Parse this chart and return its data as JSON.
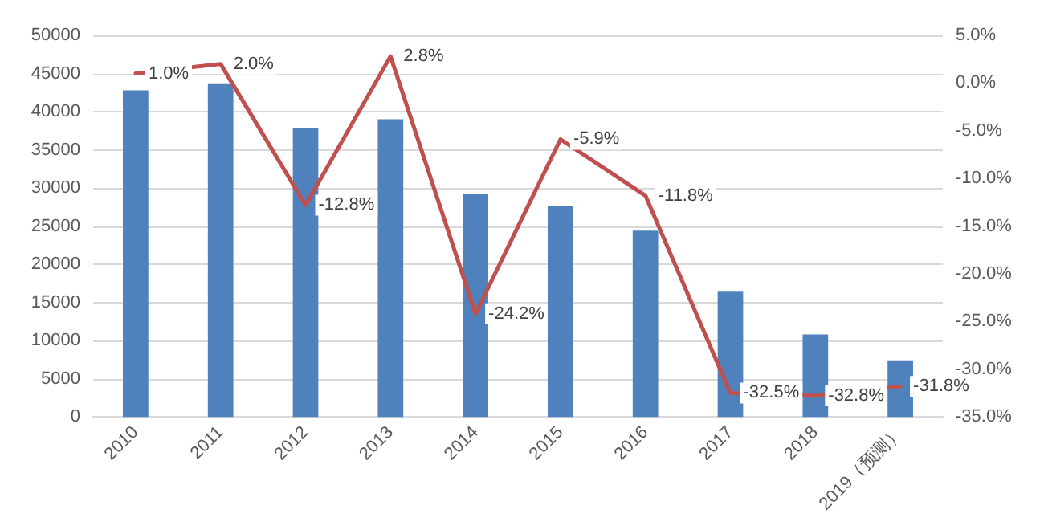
{
  "chart_data": {
    "type": "bar",
    "categories": [
      "2010",
      "2011",
      "2012",
      "2013",
      "2014",
      "2015",
      "2016",
      "2017",
      "2018",
      "2019（预测）"
    ],
    "series": [
      {
        "color": "#4f81bd",
        "values": [
          42800,
          43700,
          37900,
          39000,
          29200,
          27600,
          24400,
          16400,
          10800,
          7400
        ]
      },
      {
        "type": "line",
        "axis": "y2",
        "color": "#c0504d",
        "values": [
          1.0,
          2.0,
          -12.8,
          2.8,
          -24.2,
          -5.9,
          -11.8,
          -32.5,
          -32.8,
          -31.8
        ],
        "value_labels": [
          "1.0%",
          "2.0%",
          "-12.8%",
          "2.8%",
          "-24.2%",
          "-5.9%",
          "-11.8%",
          "-32.5%",
          "-32.8%",
          "-31.8%"
        ]
      }
    ],
    "ylim": [
      0,
      50000
    ],
    "yticks": [
      0,
      5000,
      10000,
      15000,
      20000,
      25000,
      30000,
      35000,
      40000,
      45000,
      50000
    ],
    "y2lim": [
      -35,
      5
    ],
    "y2ticks": [
      {
        "value": -35,
        "label": "-35.0%"
      },
      {
        "value": -30,
        "label": "-30.0%"
      },
      {
        "value": -25,
        "label": "-25.0%"
      },
      {
        "value": -20,
        "label": "-20.0%"
      },
      {
        "value": -15,
        "label": "-15.0%"
      },
      {
        "value": -10,
        "label": "-10.0%"
      },
      {
        "value": -5,
        "label": "-5.0%"
      },
      {
        "value": 0,
        "label": "0.0%"
      },
      {
        "value": 5,
        "label": "5.0%"
      }
    ],
    "grid": "y",
    "marker": "none",
    "line_style": "solid"
  }
}
